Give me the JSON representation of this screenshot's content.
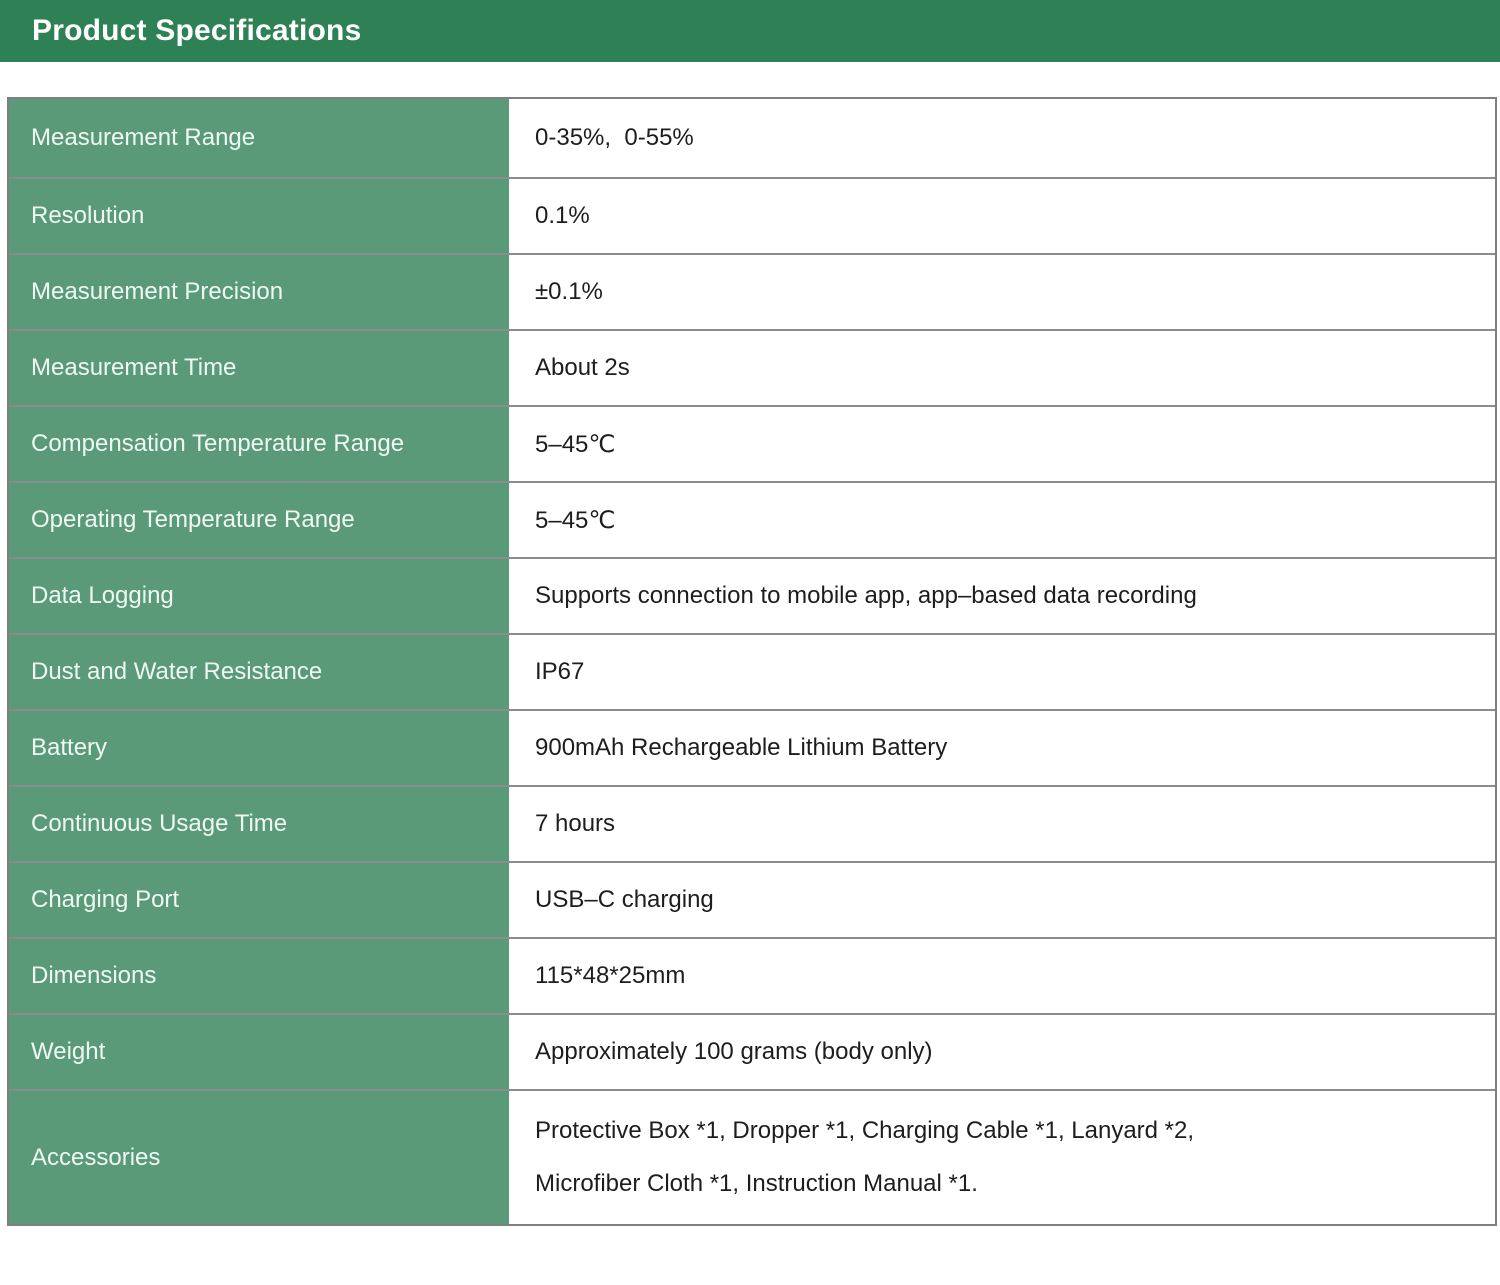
{
  "header": {
    "title": "Product Specifications"
  },
  "colors": {
    "header_bar_bg": "#2d8154",
    "label_column_bg": "#5a9a78",
    "label_text": "#eff9f3",
    "value_text": "#1d1d1d",
    "row_divider": "#8a8a8a"
  },
  "table": {
    "rows": [
      {
        "label": "Measurement Range",
        "value": "0-35%,  0-55%"
      },
      {
        "label": "Resolution",
        "value": "0.1%"
      },
      {
        "label": "Measurement Precision",
        "value": "±0.1%"
      },
      {
        "label": "Measurement Time",
        "value": "About 2s"
      },
      {
        "label": "Compensation Temperature Range",
        "value": "5–45℃"
      },
      {
        "label": "Operating Temperature Range",
        "value": "5–45℃"
      },
      {
        "label": "Data Logging",
        "value": "Supports connection to mobile app, app–based data recording"
      },
      {
        "label": "Dust and Water Resistance",
        "value": "IP67"
      },
      {
        "label": "Battery",
        "value": "900mAh Rechargeable Lithium Battery"
      },
      {
        "label": "Continuous Usage Time",
        "value": "7 hours"
      },
      {
        "label": "Charging Port",
        "value": "USB–C charging"
      },
      {
        "label": "Dimensions",
        "value": "115*48*25mm"
      },
      {
        "label": "Weight",
        "value": "Approximately 100 grams (body only)"
      },
      {
        "label": "Accessories",
        "value": "Protective Box *1, Dropper *1, Charging Cable *1, Lanyard *2,\nMicrofiber Cloth *1, Instruction Manual *1."
      }
    ]
  }
}
